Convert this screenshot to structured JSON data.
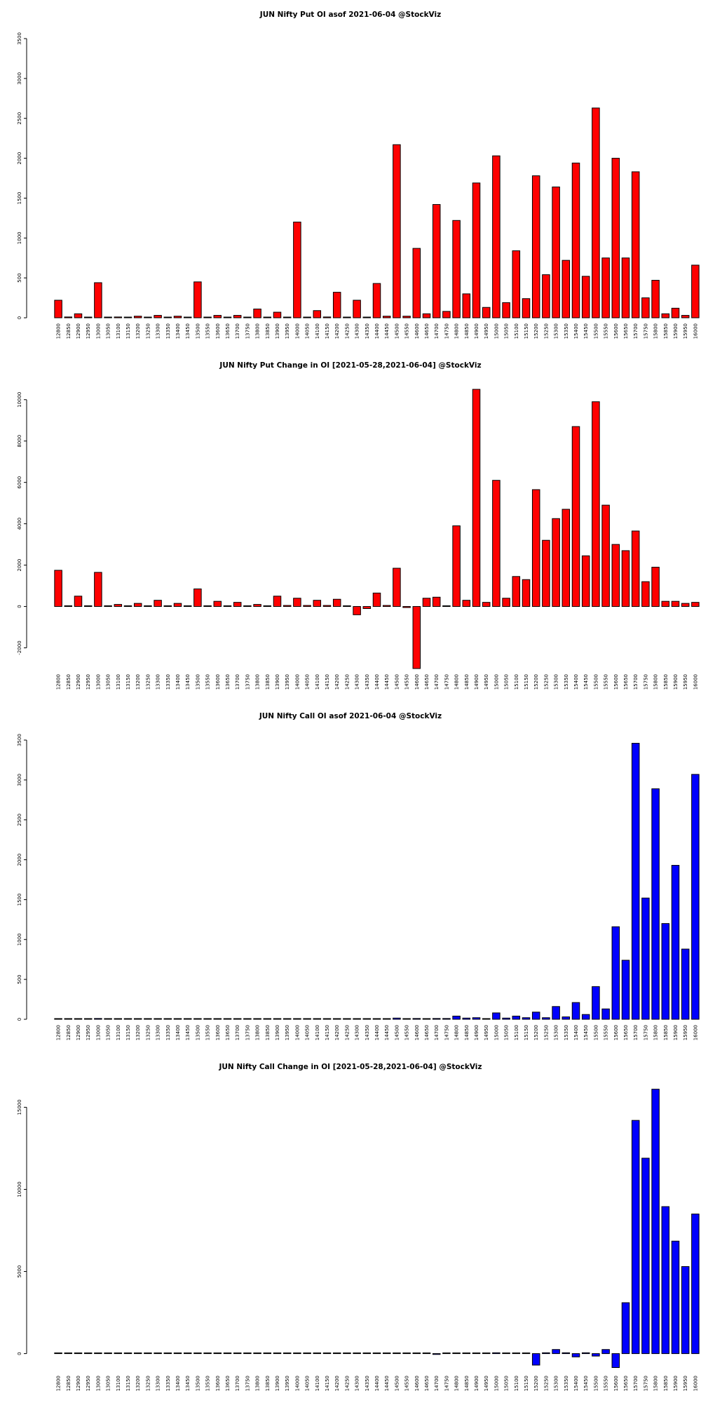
{
  "strikes": [
    "12800",
    "12850",
    "12900",
    "12950",
    "13000",
    "13050",
    "13100",
    "13150",
    "13200",
    "13250",
    "13300",
    "13350",
    "13400",
    "13450",
    "13500",
    "13550",
    "13600",
    "13650",
    "13700",
    "13750",
    "13800",
    "13850",
    "13900",
    "13950",
    "14000",
    "14050",
    "14100",
    "14150",
    "14200",
    "14250",
    "14300",
    "14350",
    "14400",
    "14450",
    "14500",
    "14550",
    "14600",
    "14650",
    "14700",
    "14750",
    "14800",
    "14850",
    "14900",
    "14950",
    "15000",
    "15050",
    "15100",
    "15150",
    "15200",
    "15250",
    "15300",
    "15350",
    "15400",
    "15450",
    "15500",
    "15550",
    "15600",
    "15650",
    "15700",
    "15750",
    "15800",
    "15850",
    "15900",
    "15950",
    "16000"
  ],
  "visible_tick_labels": [
    "12800",
    "12850",
    "12900",
    "12950",
    "13000",
    "13050",
    "13100",
    "13150",
    "13200",
    "13250",
    "13300",
    "13350",
    "13400",
    "13450",
    "13500",
    "13550",
    "13600",
    "13650",
    "13700",
    "13750",
    "13800",
    "13850",
    "13900",
    "13950",
    "14000",
    "14050",
    "14100",
    "14150",
    "14200",
    "14250",
    "14300",
    "14350",
    "14400",
    "14450",
    "14500",
    "14550",
    "14600",
    "14650",
    "14700",
    "14750",
    "14800",
    "14850",
    "14900",
    "14950",
    "15000",
    "15050",
    "15100",
    "15150",
    "15200",
    "15250",
    "15300",
    "15350",
    "15400",
    "15450",
    "15500",
    "15550",
    "15600",
    "15650",
    "15700",
    "15750",
    "15800",
    "15850",
    "15900",
    "15950",
    "16000"
  ],
  "chart_data": [
    {
      "type": "bar",
      "title": "JUN Nifty Put OI asof 2021-06-04 @StockViz",
      "color": "#ff0000",
      "ylim": [
        0,
        3500
      ],
      "yticks": [
        0,
        500,
        1000,
        1500,
        2000,
        2500,
        3000,
        3500
      ],
      "ytick_labels": [
        "0",
        "500",
        "1000",
        "1500",
        "2000",
        "2500",
        "3000",
        "3500"
      ],
      "values": [
        220,
        10,
        50,
        5,
        440,
        5,
        10,
        5,
        20,
        5,
        30,
        5,
        20,
        5,
        450,
        5,
        30,
        5,
        30,
        5,
        110,
        5,
        70,
        5,
        1200,
        5,
        90,
        10,
        320,
        5,
        220,
        5,
        430,
        20,
        2170,
        20,
        870,
        50,
        1420,
        80,
        1220,
        300,
        1690,
        130,
        2030,
        190,
        840,
        240,
        1780,
        540,
        1640,
        720,
        1940,
        520,
        2630,
        750,
        2000,
        750,
        1830,
        250,
        470,
        50,
        120,
        30,
        660
      ]
    },
    {
      "type": "bar",
      "title": "JUN Nifty Put Change in OI [2021-05-28,2021-06-04] @StockViz",
      "color": "#ff0000",
      "ylim": [
        -3000,
        10500
      ],
      "yticks": [
        -2000,
        0,
        2000,
        4000,
        6000,
        8000,
        10000
      ],
      "ytick_labels": [
        "-2000",
        "0",
        "2000",
        "4000",
        "6000",
        "8000",
        "10000"
      ],
      "values": [
        1750,
        0,
        500,
        0,
        1650,
        0,
        100,
        0,
        150,
        0,
        300,
        0,
        150,
        0,
        850,
        0,
        250,
        0,
        200,
        0,
        100,
        0,
        500,
        50,
        400,
        50,
        300,
        50,
        350,
        0,
        -400,
        -100,
        650,
        50,
        1850,
        -50,
        -3000,
        400,
        450,
        0,
        3900,
        300,
        10500,
        200,
        6100,
        400,
        1450,
        1300,
        5650,
        3200,
        4250,
        4700,
        8700,
        2450,
        9900,
        4900,
        3000,
        2700,
        3650,
        1200,
        1900,
        250,
        250,
        150,
        200
      ]
    },
    {
      "type": "bar",
      "title": "JUN Nifty Call OI asof 2021-06-04 @StockViz",
      "color": "#0000ff",
      "ylim": [
        0,
        3500
      ],
      "yticks": [
        0,
        500,
        1000,
        1500,
        2000,
        2500,
        3000,
        3500
      ],
      "ytick_labels": [
        "0",
        "500",
        "1000",
        "1500",
        "2000",
        "2500",
        "3000",
        "3500"
      ],
      "values": [
        5,
        5,
        5,
        5,
        10,
        5,
        5,
        5,
        5,
        5,
        5,
        5,
        5,
        5,
        5,
        5,
        5,
        5,
        5,
        5,
        5,
        5,
        5,
        5,
        5,
        5,
        5,
        5,
        5,
        5,
        5,
        5,
        5,
        5,
        15,
        5,
        10,
        5,
        10,
        10,
        40,
        15,
        20,
        5,
        80,
        15,
        40,
        20,
        90,
        20,
        160,
        30,
        210,
        60,
        410,
        130,
        1160,
        740,
        3460,
        1520,
        2890,
        1200,
        1930,
        880,
        3070
      ]
    },
    {
      "type": "bar",
      "title": "JUN Nifty Call Change in OI [2021-05-28,2021-06-04] @StockViz",
      "color": "#0000ff",
      "ylim": [
        -1000,
        16000
      ],
      "yticks": [
        0,
        5000,
        10000,
        15000
      ],
      "ytick_labels": [
        "0",
        "5000",
        "10000",
        "15000"
      ],
      "values": [
        0,
        0,
        0,
        0,
        0,
        0,
        0,
        0,
        0,
        0,
        0,
        0,
        0,
        0,
        0,
        0,
        0,
        0,
        0,
        0,
        0,
        0,
        0,
        0,
        0,
        0,
        0,
        0,
        0,
        0,
        0,
        0,
        0,
        0,
        0,
        0,
        0,
        0,
        -50,
        0,
        0,
        0,
        0,
        0,
        50,
        0,
        0,
        0,
        -700,
        50,
        250,
        50,
        -200,
        50,
        -150,
        250,
        -850,
        3100,
        14200,
        11900,
        16100,
        8950,
        6850,
        5300,
        8500
      ]
    }
  ]
}
